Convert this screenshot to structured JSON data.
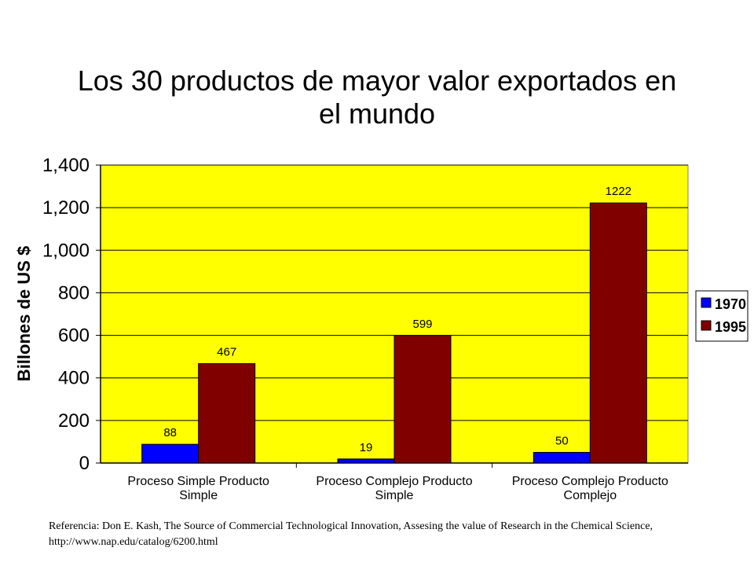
{
  "chart_data": {
    "type": "bar",
    "title": "Los 30 productos de mayor valor exportados en el mundo",
    "ylabel": "Billones de US $",
    "xlabel": "",
    "ylim": [
      0,
      1400
    ],
    "yticks": [
      0,
      200,
      400,
      600,
      800,
      1000,
      1200,
      1400
    ],
    "ytick_labels": [
      "0",
      "200",
      "400",
      "600",
      "800",
      "1,000",
      "1,200",
      "1,400"
    ],
    "categories": [
      [
        "Proceso Simple Producto",
        "Simple"
      ],
      [
        "Proceso Complejo Producto",
        "Simple"
      ],
      [
        "Proceso Complejo Producto",
        "Complejo"
      ]
    ],
    "series": [
      {
        "name": "1970",
        "values": [
          88,
          19,
          50
        ],
        "color": "#0000ff"
      },
      {
        "name": "1995",
        "values": [
          467,
          599,
          1222
        ],
        "color": "#800000"
      }
    ],
    "data_labels": true,
    "grid": true,
    "plot_background": "#ffff00",
    "legend_position": "right"
  },
  "title_lines": [
    "Los 30 productos de mayor valor exportados en",
    "el mundo"
  ],
  "reference_text": "Referencia: Don E. Kash, The Source of Commercial Technological Innovation, Assesing the value of Research in the Chemical Science, http://www.nap.edu/catalog/6200.html"
}
